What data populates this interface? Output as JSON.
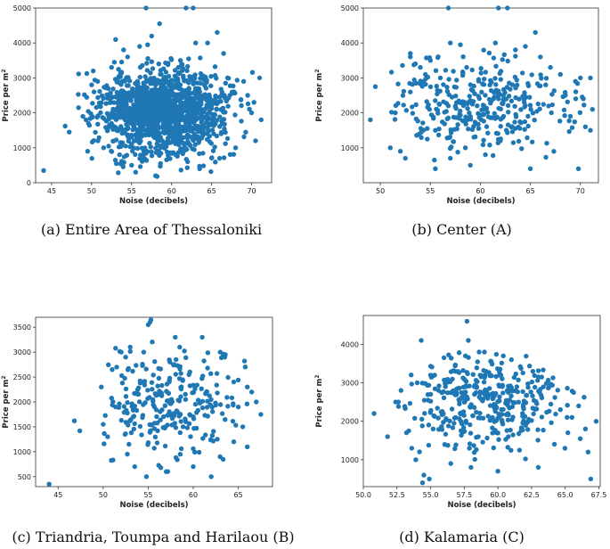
{
  "chart_data": [
    {
      "id": "a",
      "type": "scatter",
      "caption": "(a) Entire Area of Thessaloniki",
      "xlabel": "Noise (decibels)",
      "ylabel": "Price per m",
      "ylabel_sup": "2",
      "xlim": [
        43,
        72.5
      ],
      "ylim": [
        0,
        5000
      ],
      "xticks": [
        {
          "v": 45,
          "t": "45"
        },
        {
          "v": 50,
          "t": "50"
        },
        {
          "v": 55,
          "t": "55"
        },
        {
          "v": 60,
          "t": "60"
        },
        {
          "v": 65,
          "t": "65"
        },
        {
          "v": 70,
          "t": "70"
        }
      ],
      "yticks": [
        {
          "v": 0,
          "t": "0"
        },
        {
          "v": 1000,
          "t": "1000"
        },
        {
          "v": 2000,
          "t": "2000"
        },
        {
          "v": 3000,
          "t": "3000"
        },
        {
          "v": 4000,
          "t": "4000"
        },
        {
          "v": 5000,
          "t": "5000"
        }
      ],
      "points": [
        [
          44,
          350
        ],
        [
          46.7,
          1620
        ],
        [
          47.2,
          1450
        ],
        [
          49.3,
          1800
        ],
        [
          49.6,
          1700
        ],
        [
          49.5,
          900
        ],
        [
          50.0,
          2800
        ],
        [
          50.2,
          3200
        ],
        [
          50.3,
          2600
        ],
        [
          50.8,
          1200
        ],
        [
          51.0,
          2250
        ],
        [
          51.5,
          1000
        ],
        [
          53.0,
          4100
        ],
        [
          54.0,
          3800
        ],
        [
          54.5,
          3600
        ],
        [
          55.0,
          500
        ],
        [
          55.5,
          300
        ],
        [
          56.0,
          3900
        ],
        [
          57.0,
          3950
        ],
        [
          57.5,
          4200
        ],
        [
          56.8,
          5000
        ],
        [
          58.5,
          4550
        ],
        [
          61.8,
          5000
        ],
        [
          62.7,
          5000
        ],
        [
          63.0,
          4000
        ],
        [
          64.5,
          4000
        ],
        [
          65.7,
          4300
        ],
        [
          66.5,
          3700
        ],
        [
          66.0,
          700
        ],
        [
          67.0,
          3000
        ],
        [
          67.8,
          2600
        ],
        [
          68.0,
          1000
        ],
        [
          69.0,
          2900
        ],
        [
          69.5,
          2500
        ],
        [
          70.0,
          2000
        ],
        [
          70.3,
          2300
        ],
        [
          70.5,
          1200
        ],
        [
          71.0,
          3000
        ],
        [
          71.2,
          1800
        ],
        [
          55.0,
          1300
        ],
        [
          60.5,
          800
        ],
        [
          62.0,
          600
        ],
        [
          58.0,
          200
        ],
        [
          63.5,
          400
        ],
        [
          66.2,
          1400
        ],
        [
          52.0,
          1500
        ],
        [
          53.5,
          800
        ],
        [
          52.5,
          3300
        ]
      ],
      "cloud": {
        "n": 1400,
        "seed": 11,
        "mx": 58.8,
        "sx": 3.9,
        "my": 2050,
        "sy": 620,
        "xmin": 48,
        "xmax": 71,
        "ymin": 150,
        "ymax": 3700
      }
    },
    {
      "id": "b",
      "type": "scatter",
      "caption": "(b) Center (A)",
      "xlabel": "Noise (decibels)",
      "ylabel": "Price per m",
      "ylabel_sup": "2",
      "xlim": [
        48.3,
        71.8
      ],
      "ylim": [
        0,
        5000
      ],
      "xticks": [
        {
          "v": 50,
          "t": "50"
        },
        {
          "v": 55,
          "t": "55"
        },
        {
          "v": 60,
          "t": "60"
        },
        {
          "v": 65,
          "t": "65"
        },
        {
          "v": 70,
          "t": "70"
        }
      ],
      "yticks": [
        {
          "v": 1000,
          "t": "1000"
        },
        {
          "v": 2000,
          "t": "2000"
        },
        {
          "v": 3000,
          "t": "3000"
        },
        {
          "v": 4000,
          "t": "4000"
        },
        {
          "v": 5000,
          "t": "5000"
        }
      ],
      "points": [
        [
          49,
          1800
        ],
        [
          49.5,
          2750
        ],
        [
          51.5,
          2000
        ],
        [
          51.0,
          1000
        ],
        [
          52.0,
          900
        ],
        [
          52.5,
          700
        ],
        [
          53,
          3700
        ],
        [
          53.0,
          3600
        ],
        [
          54.0,
          3300
        ],
        [
          54.5,
          3100
        ],
        [
          55,
          3500
        ],
        [
          55.5,
          400
        ],
        [
          56,
          3000
        ],
        [
          56.8,
          5000
        ],
        [
          57.0,
          4000
        ],
        [
          58.0,
          3950
        ],
        [
          61.8,
          5000
        ],
        [
          62.7,
          5000
        ],
        [
          61.5,
          4000
        ],
        [
          63.5,
          3800
        ],
        [
          64.5,
          3900
        ],
        [
          65.5,
          4300
        ],
        [
          66.0,
          3600
        ],
        [
          65.0,
          400
        ],
        [
          67.0,
          3300
        ],
        [
          68.0,
          3100
        ],
        [
          68.5,
          2500
        ],
        [
          69.0,
          1900
        ],
        [
          69.5,
          2900
        ],
        [
          69.8,
          400
        ],
        [
          70.0,
          3000
        ],
        [
          70.3,
          2400
        ],
        [
          70.5,
          1600
        ],
        [
          71.0,
          3000
        ],
        [
          71.2,
          2100
        ],
        [
          71.0,
          1500
        ],
        [
          57.0,
          700
        ],
        [
          59.0,
          500
        ],
        [
          60.5,
          800
        ],
        [
          62.0,
          1200
        ],
        [
          58.5,
          1000
        ]
      ],
      "cloud": {
        "n": 330,
        "seed": 23,
        "mx": 59.5,
        "sx": 4.5,
        "my": 2150,
        "sy": 700,
        "xmin": 51,
        "xmax": 70.5,
        "ymin": 500,
        "ymax": 3800
      }
    },
    {
      "id": "c",
      "type": "scatter",
      "caption": "(c) Triandria, Toumpa and Harilaou (B)",
      "xlabel": "Noise (decibels)",
      "ylabel": "Price per m",
      "ylabel_sup": "2",
      "xlim": [
        42.5,
        68.8
      ],
      "ylim": [
        300,
        3700
      ],
      "xticks": [
        {
          "v": 45,
          "t": "45"
        },
        {
          "v": 50,
          "t": "50"
        },
        {
          "v": 55,
          "t": "55"
        },
        {
          "v": 60,
          "t": "60"
        },
        {
          "v": 65,
          "t": "65"
        }
      ],
      "yticks": [
        {
          "v": 500,
          "t": "500"
        },
        {
          "v": 1000,
          "t": "1000"
        },
        {
          "v": 1500,
          "t": "1500"
        },
        {
          "v": 2000,
          "t": "2000"
        },
        {
          "v": 2500,
          "t": "2500"
        },
        {
          "v": 3000,
          "t": "3000"
        },
        {
          "v": 3500,
          "t": "3500"
        }
      ],
      "points": [
        [
          44,
          350
        ],
        [
          46.8,
          1620
        ],
        [
          47.4,
          1420
        ],
        [
          49.8,
          2300
        ],
        [
          50.0,
          1550
        ],
        [
          51.0,
          2650
        ],
        [
          51.5,
          2700
        ],
        [
          52.0,
          3000
        ],
        [
          52.5,
          2900
        ],
        [
          53.0,
          3100
        ],
        [
          54.5,
          3000
        ],
        [
          55.0,
          3550
        ],
        [
          55.2,
          3600
        ],
        [
          55.3,
          3650
        ],
        [
          54.8,
          500
        ],
        [
          57.0,
          600
        ],
        [
          60.0,
          700
        ],
        [
          61.0,
          3300
        ],
        [
          62.0,
          500
        ],
        [
          63.0,
          3000
        ],
        [
          63.5,
          2900
        ],
        [
          64.5,
          2400
        ],
        [
          65.0,
          1900
        ],
        [
          65.5,
          1500
        ],
        [
          66.0,
          2300
        ],
        [
          66.5,
          2200
        ],
        [
          67.0,
          2000
        ],
        [
          67.5,
          1750
        ],
        [
          66.0,
          1100
        ],
        [
          64.5,
          1200
        ],
        [
          53.5,
          700
        ],
        [
          50.5,
          1300
        ],
        [
          58.0,
          3300
        ],
        [
          58.5,
          3100
        ]
      ],
      "cloud": {
        "n": 260,
        "seed": 37,
        "mx": 57.5,
        "sx": 4.0,
        "my": 2000,
        "sy": 600,
        "xmin": 50,
        "xmax": 66,
        "ymin": 600,
        "ymax": 3300
      }
    },
    {
      "id": "d",
      "type": "scatter",
      "caption": "(d) Kalamaria (C)",
      "xlabel": "Noise (decibels)",
      "ylabel": "Price per m",
      "ylabel_sup": "2",
      "xlim": [
        50.0,
        67.6
      ],
      "ylim": [
        300,
        4750
      ],
      "xticks": [
        {
          "v": 50.0,
          "t": "50.0"
        },
        {
          "v": 52.5,
          "t": "52.5"
        },
        {
          "v": 55.0,
          "t": "55.0"
        },
        {
          "v": 57.5,
          "t": "57.5"
        },
        {
          "v": 60.0,
          "t": "60.0"
        },
        {
          "v": 62.5,
          "t": "62.5"
        },
        {
          "v": 65.0,
          "t": "65.0"
        },
        {
          "v": 67.5,
          "t": "67.5"
        }
      ],
      "yticks": [
        {
          "v": 1000,
          "t": "1000"
        },
        {
          "v": 2000,
          "t": "2000"
        },
        {
          "v": 3000,
          "t": "3000"
        },
        {
          "v": 4000,
          "t": "4000"
        }
      ],
      "points": [
        [
          50.8,
          2200
        ],
        [
          51.8,
          1600
        ],
        [
          52.4,
          2500
        ],
        [
          52.6,
          2500
        ],
        [
          52.8,
          2800
        ],
        [
          53.2,
          1700
        ],
        [
          53.6,
          1300
        ],
        [
          53.9,
          1000
        ],
        [
          54.0,
          3000
        ],
        [
          54.3,
          4100
        ],
        [
          54.5,
          600
        ],
        [
          54.4,
          400
        ],
        [
          54.9,
          500
        ],
        [
          55.3,
          3200
        ],
        [
          55.0,
          2700
        ],
        [
          57.7,
          4600
        ],
        [
          57.8,
          4100
        ],
        [
          58.6,
          3800
        ],
        [
          59.0,
          3800
        ],
        [
          60.4,
          3700
        ],
        [
          61.0,
          3600
        ],
        [
          62.6,
          3300
        ],
        [
          63.0,
          800
        ],
        [
          64.2,
          1400
        ],
        [
          65.2,
          1700
        ],
        [
          65.5,
          2100
        ],
        [
          66.0,
          2400
        ],
        [
          66.5,
          1800
        ],
        [
          66.9,
          500
        ],
        [
          67.3,
          2000
        ],
        [
          66.7,
          1200
        ],
        [
          58.0,
          800
        ],
        [
          60.0,
          700
        ],
        [
          56.5,
          900
        ]
      ],
      "cloud": {
        "n": 380,
        "seed": 51,
        "mx": 59.0,
        "sx": 2.9,
        "my": 2450,
        "sy": 600,
        "xmin": 52.5,
        "xmax": 66.5,
        "ymin": 750,
        "ymax": 3800
      }
    }
  ]
}
